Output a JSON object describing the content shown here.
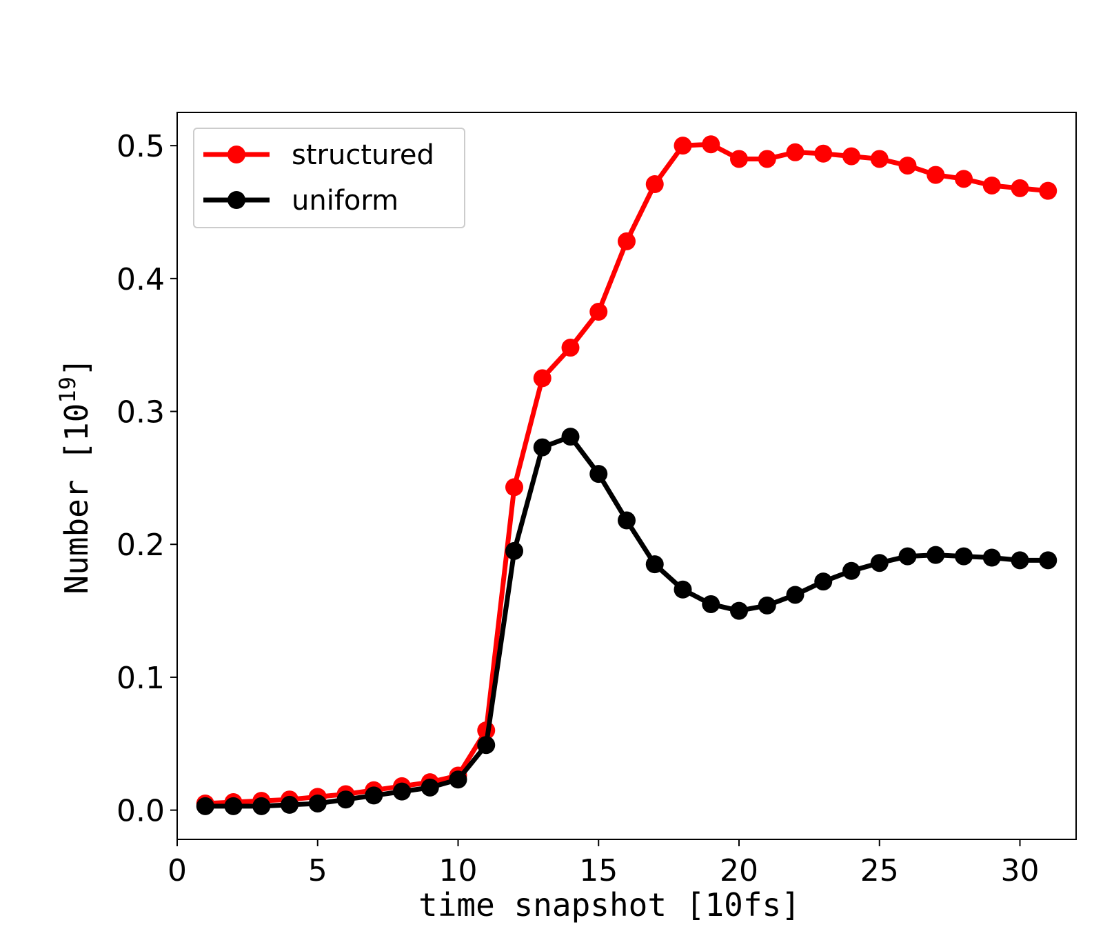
{
  "chart_data": {
    "type": "line",
    "xlabel": "time snapshot [10fs]",
    "ylabel": {
      "base": "Number [10",
      "exponent": "19",
      "suffix": "]"
    },
    "xlim": [
      0,
      32
    ],
    "ylim": [
      -0.022,
      0.525
    ],
    "xticks": [
      0,
      5,
      10,
      15,
      20,
      25,
      30
    ],
    "yticks": [
      0.0,
      0.1,
      0.2,
      0.3,
      0.4,
      0.5
    ],
    "ytick_labels": [
      "0.0",
      "0.1",
      "0.2",
      "0.3",
      "0.4",
      "0.5"
    ],
    "grid": false,
    "legend": "top-left",
    "x": [
      1,
      2,
      3,
      4,
      5,
      6,
      7,
      8,
      9,
      10,
      11,
      12,
      13,
      14,
      15,
      16,
      17,
      18,
      19,
      20,
      21,
      22,
      23,
      24,
      25,
      26,
      27,
      28,
      29,
      30,
      31
    ],
    "series": [
      {
        "name": "structured",
        "color": "#ff0000",
        "values": [
          0.005,
          0.006,
          0.007,
          0.008,
          0.01,
          0.012,
          0.015,
          0.018,
          0.021,
          0.026,
          0.06,
          0.243,
          0.325,
          0.348,
          0.375,
          0.428,
          0.471,
          0.5,
          0.501,
          0.49,
          0.49,
          0.495,
          0.494,
          0.492,
          0.49,
          0.485,
          0.478,
          0.475,
          0.47,
          0.468,
          0.466
        ]
      },
      {
        "name": "uniform",
        "color": "#000000",
        "values": [
          0.003,
          0.003,
          0.003,
          0.004,
          0.005,
          0.008,
          0.011,
          0.014,
          0.017,
          0.023,
          0.049,
          0.195,
          0.273,
          0.281,
          0.253,
          0.218,
          0.185,
          0.166,
          0.155,
          0.15,
          0.154,
          0.162,
          0.172,
          0.18,
          0.186,
          0.191,
          0.192,
          0.191,
          0.19,
          0.188,
          0.188
        ]
      }
    ]
  }
}
